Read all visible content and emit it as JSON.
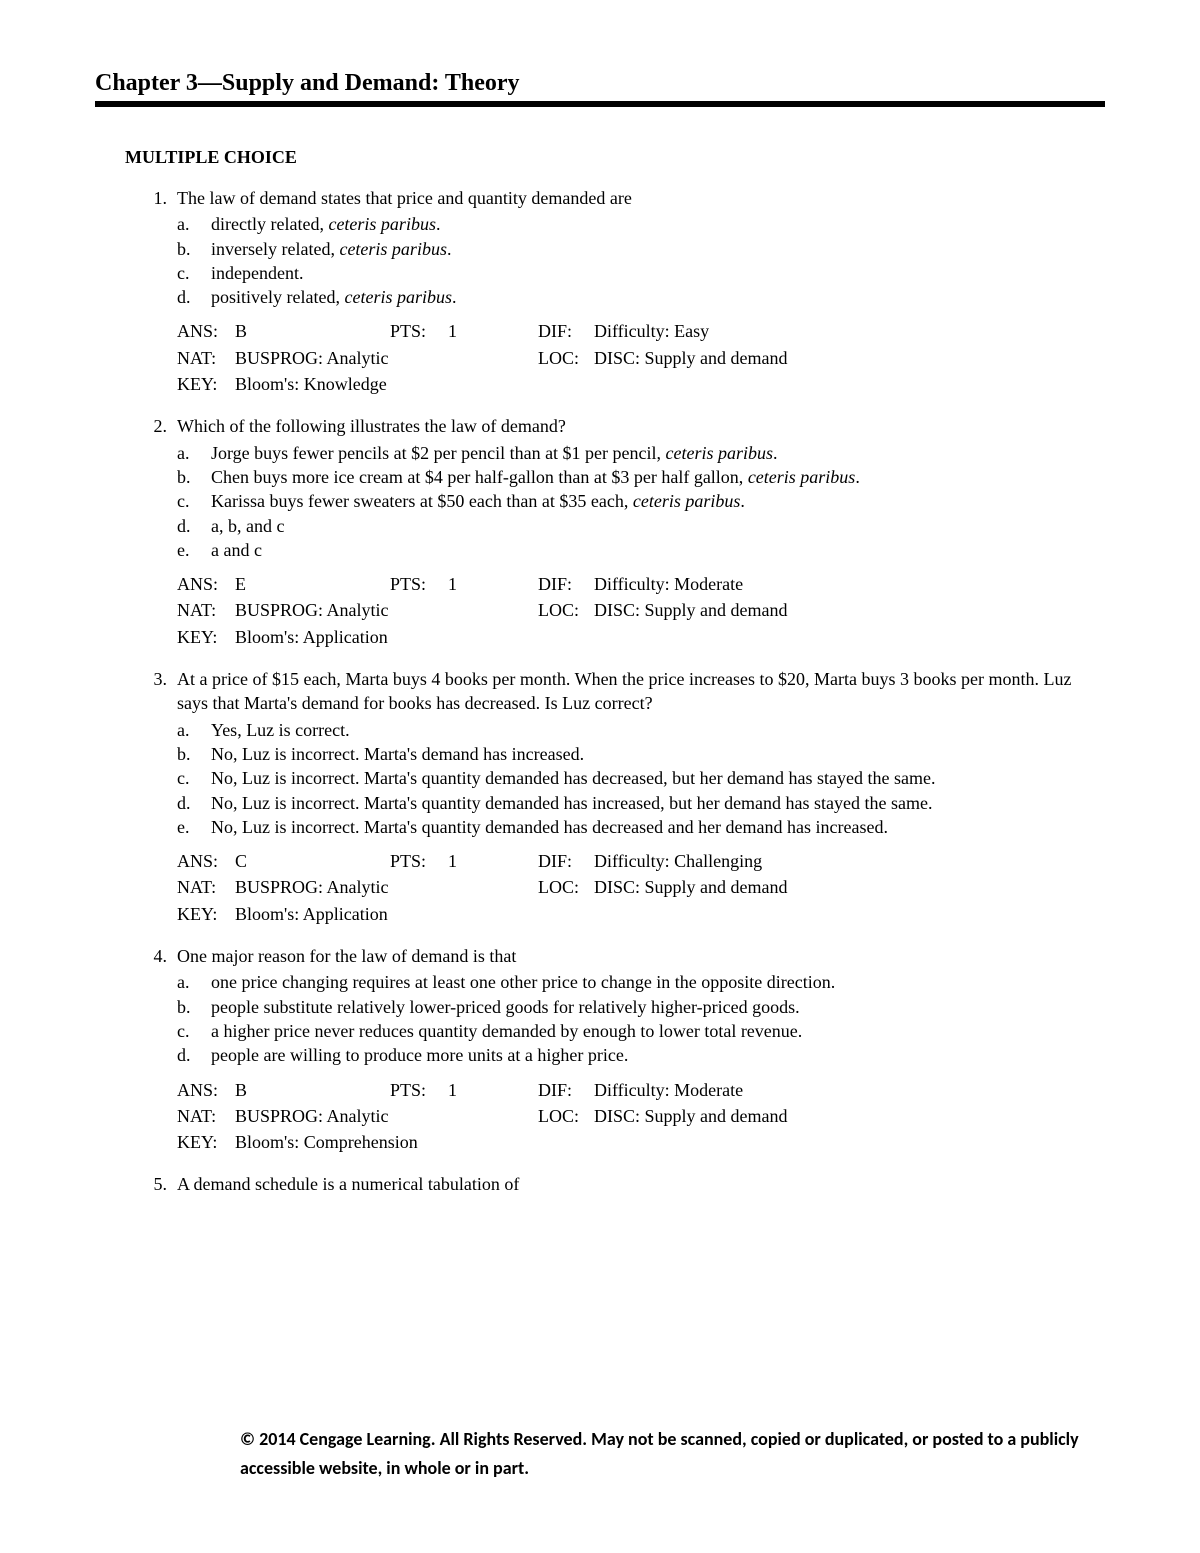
{
  "header": {
    "chapter_title": "Chapter 3—Supply and Demand: Theory",
    "section": "MULTIPLE CHOICE"
  },
  "questions": [
    {
      "num": "1.",
      "stem": "The law of demand states that price and quantity demanded are",
      "options": [
        {
          "l": "a.",
          "text": "directly related, ",
          "italic": "ceteris paribus",
          "suffix": "."
        },
        {
          "l": "b.",
          "text": "inversely related, ",
          "italic": "ceteris paribus",
          "suffix": "."
        },
        {
          "l": "c.",
          "text": "independent.",
          "italic": "",
          "suffix": ""
        },
        {
          "l": "d.",
          "text": "positively related, ",
          "italic": "ceteris paribus",
          "suffix": "."
        }
      ],
      "meta": {
        "ans_label": "ANS:",
        "ans": "B",
        "pts_label": "PTS:",
        "pts": "1",
        "dif_label": "DIF:",
        "dif": "Difficulty: Easy",
        "nat_label": "NAT:",
        "nat": "BUSPROG: Analytic",
        "loc_label": "LOC:",
        "loc": "DISC: Supply and demand",
        "key_label": "KEY:",
        "key": "Bloom's: Knowledge"
      }
    },
    {
      "num": "2.",
      "stem": "Which of the following illustrates the law of demand?",
      "options": [
        {
          "l": "a.",
          "text": "Jorge buys fewer pencils at $2 per pencil than at $1 per pencil, ",
          "italic": "ceteris paribus",
          "suffix": "."
        },
        {
          "l": "b.",
          "text": "Chen buys more ice cream at $4 per half-gallon than at $3 per half gallon, ",
          "italic": "ceteris paribus",
          "suffix": "."
        },
        {
          "l": "c.",
          "text": "Karissa buys fewer sweaters at $50 each than at $35 each, ",
          "italic": "ceteris paribus",
          "suffix": "."
        },
        {
          "l": "d.",
          "text": "a, b, and c",
          "italic": "",
          "suffix": ""
        },
        {
          "l": "e.",
          "text": "a and c",
          "italic": "",
          "suffix": ""
        }
      ],
      "meta": {
        "ans_label": "ANS:",
        "ans": "E",
        "pts_label": "PTS:",
        "pts": "1",
        "dif_label": "DIF:",
        "dif": "Difficulty: Moderate",
        "nat_label": "NAT:",
        "nat": "BUSPROG: Analytic",
        "loc_label": "LOC:",
        "loc": "DISC: Supply and demand",
        "key_label": "KEY:",
        "key": "Bloom's: Application"
      }
    },
    {
      "num": "3.",
      "stem": "At a price of $15 each, Marta buys 4 books per month. When the price increases to $20, Marta buys 3 books per month. Luz says that Marta's demand for books has decreased. Is Luz correct?",
      "options": [
        {
          "l": "a.",
          "text": "Yes, Luz is correct.",
          "italic": "",
          "suffix": ""
        },
        {
          "l": "b.",
          "text": "No, Luz is incorrect. Marta's demand has increased.",
          "italic": "",
          "suffix": ""
        },
        {
          "l": "c.",
          "text": "No, Luz is incorrect. Marta's quantity demanded has decreased, but her demand has stayed the same.",
          "italic": "",
          "suffix": ""
        },
        {
          "l": "d.",
          "text": "No, Luz is incorrect. Marta's quantity demanded has increased, but her demand has stayed the same.",
          "italic": "",
          "suffix": ""
        },
        {
          "l": "e.",
          "text": "No, Luz is incorrect. Marta's quantity demanded has decreased and her demand has increased.",
          "italic": "",
          "suffix": ""
        }
      ],
      "meta": {
        "ans_label": "ANS:",
        "ans": "C",
        "pts_label": "PTS:",
        "pts": "1",
        "dif_label": "DIF:",
        "dif": "Difficulty: Challenging",
        "nat_label": "NAT:",
        "nat": "BUSPROG: Analytic",
        "loc_label": "LOC:",
        "loc": "DISC: Supply and demand",
        "key_label": "KEY:",
        "key": "Bloom's: Application"
      }
    },
    {
      "num": "4.",
      "stem": "One major reason for the law of demand is that",
      "options": [
        {
          "l": "a.",
          "text": "one price changing requires at least one other price to change in the opposite direction.",
          "italic": "",
          "suffix": ""
        },
        {
          "l": "b.",
          "text": "people substitute relatively lower-priced goods for relatively higher-priced goods.",
          "italic": "",
          "suffix": ""
        },
        {
          "l": "c.",
          "text": "a higher price never reduces quantity demanded by enough to lower total revenue.",
          "italic": "",
          "suffix": ""
        },
        {
          "l": "d.",
          "text": "people are willing to produce more units at a higher price.",
          "italic": "",
          "suffix": ""
        }
      ],
      "meta": {
        "ans_label": "ANS:",
        "ans": "B",
        "pts_label": "PTS:",
        "pts": "1",
        "dif_label": "DIF:",
        "dif": "Difficulty: Moderate",
        "nat_label": "NAT:",
        "nat": "BUSPROG: Analytic",
        "loc_label": "LOC:",
        "loc": "DISC: Supply and demand",
        "key_label": "KEY:",
        "key": "Bloom's: Comprehension"
      }
    },
    {
      "num": "5.",
      "stem": "A demand schedule is a numerical tabulation of",
      "options": [],
      "meta": null
    }
  ],
  "footer": "© 2014 Cengage Learning. All Rights Reserved. May not be scanned, copied or duplicated, or posted to a publicly accessible website, in whole or in part."
}
